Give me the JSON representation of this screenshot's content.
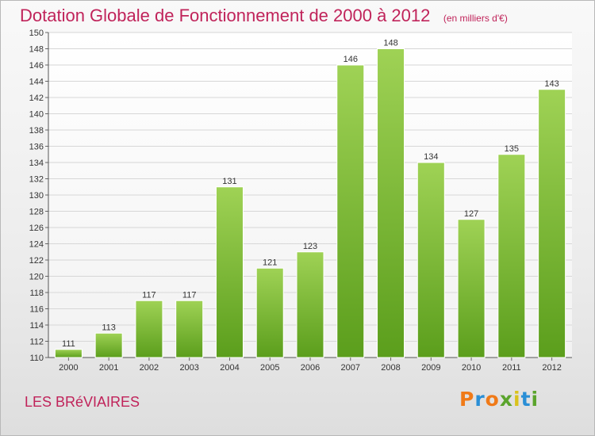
{
  "header": {
    "title": "Dotation Globale de Fonctionnement de 2000 à 2012",
    "unit": "(en milliers d'€)"
  },
  "footer": {
    "commune": "LES BRéVIAIRES",
    "brand": "Proxiti"
  },
  "colors": {
    "title": "#c0235a",
    "bar_light": "#9fd255",
    "bar_dark": "#5b9e1c",
    "grid": "#d7d7d7"
  },
  "chart_data": {
    "type": "bar",
    "title": "Dotation Globale de Fonctionnement de 2000 à 2012",
    "subtitle": "(en milliers d'€)",
    "xlabel": "",
    "ylabel": "",
    "categories": [
      "2000",
      "2001",
      "2002",
      "2003",
      "2004",
      "2005",
      "2006",
      "2007",
      "2008",
      "2009",
      "2010",
      "2011",
      "2012"
    ],
    "values": [
      111,
      113,
      117,
      117,
      131,
      121,
      123,
      146,
      148,
      134,
      127,
      135,
      143
    ],
    "ylim": [
      110,
      150
    ],
    "ytick_step": 2,
    "grid": true,
    "data_labels": true
  }
}
